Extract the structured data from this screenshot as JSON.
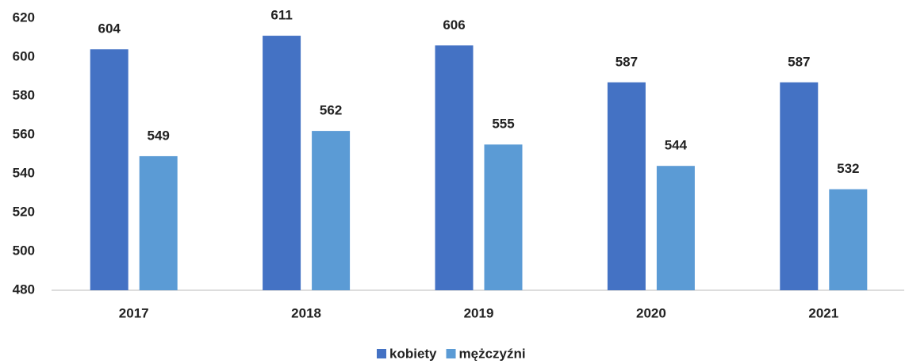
{
  "chart_data": {
    "type": "bar",
    "categories": [
      "2017",
      "2018",
      "2019",
      "2020",
      "2021"
    ],
    "series": [
      {
        "name": "kobiety",
        "color": "#4472c4",
        "values": [
          604,
          611,
          606,
          587,
          587
        ]
      },
      {
        "name": "mężczyźni",
        "color": "#5b9bd5",
        "values": [
          549,
          562,
          555,
          544,
          532
        ]
      }
    ],
    "ylim": [
      480,
      620
    ],
    "yticks": [
      480,
      500,
      520,
      540,
      560,
      580,
      600,
      620
    ],
    "grid": false,
    "legend": "bottom"
  }
}
